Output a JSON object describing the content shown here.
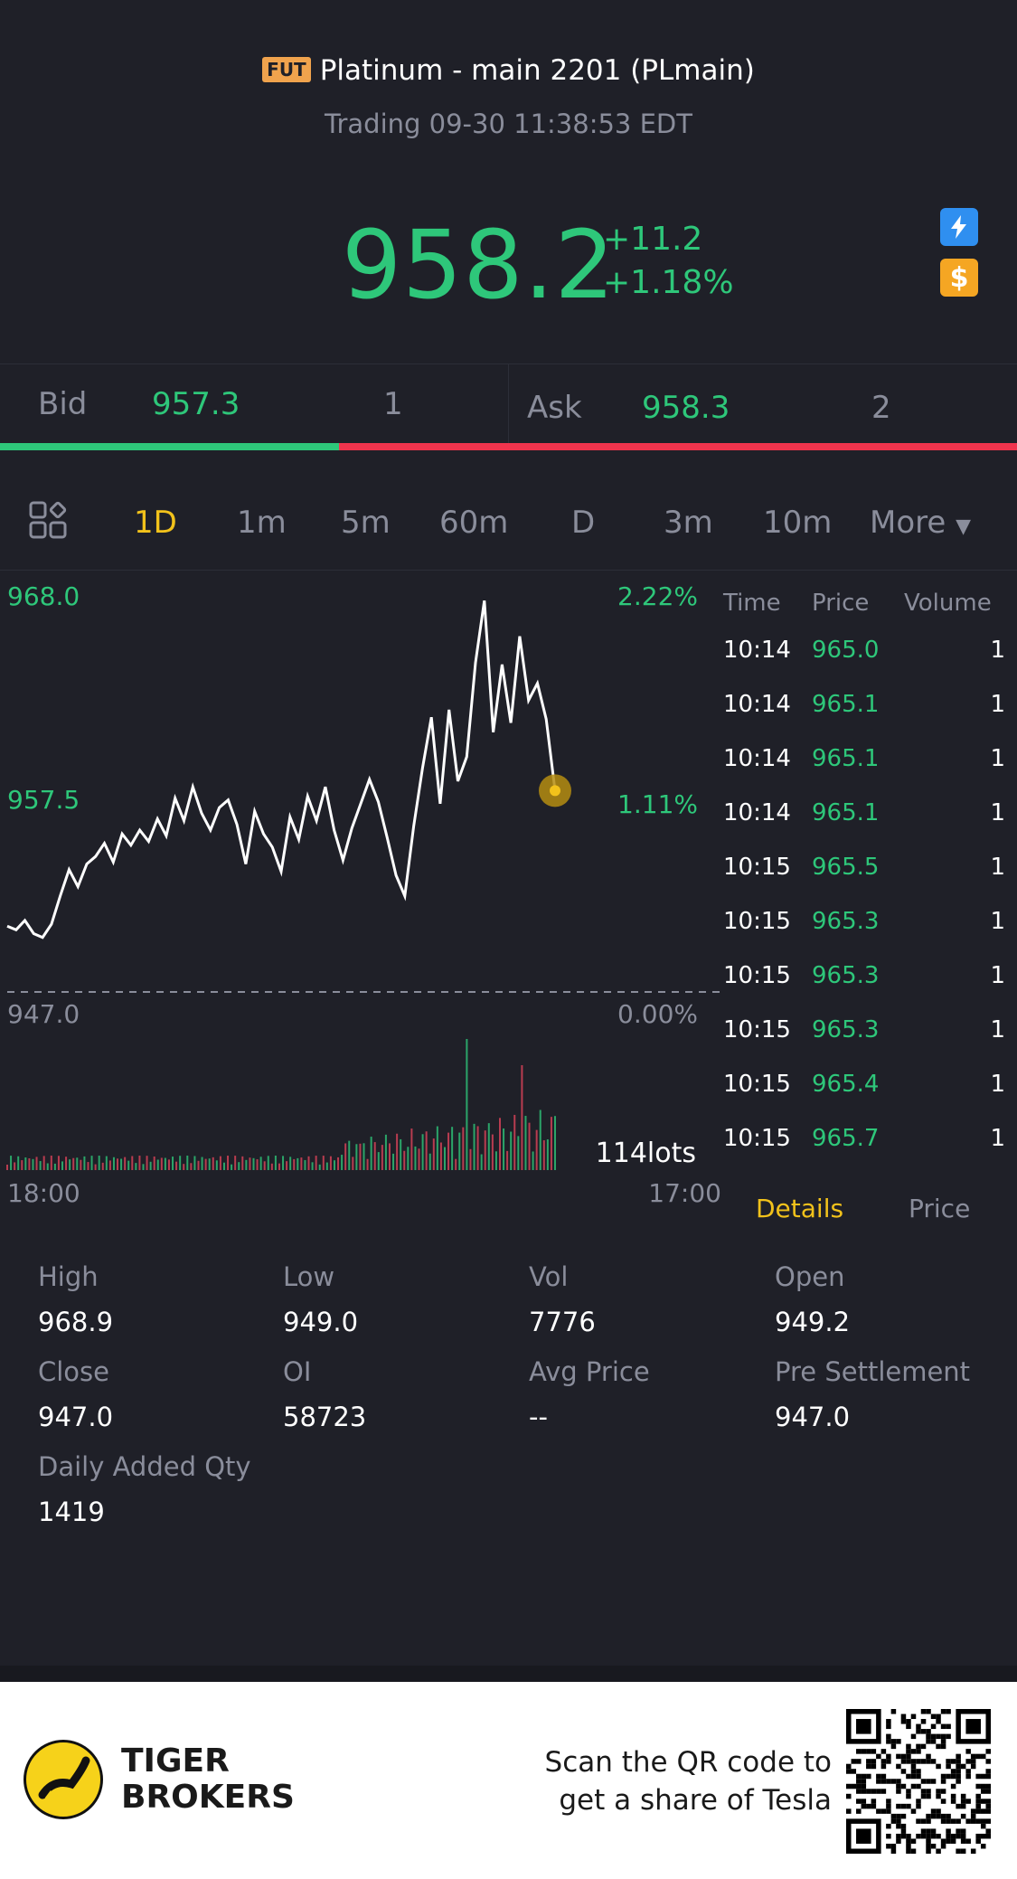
{
  "header": {
    "badge": "FUT",
    "title": "Platinum - main 2201 (PLmain)",
    "status": "Trading 09-30 11:38:53 EDT"
  },
  "quote": {
    "last": "958.2",
    "change": "+11.2",
    "change_pct": "+1.18%",
    "accent_color": "#2ec77a"
  },
  "side_icons": [
    "lightning-icon",
    "dollar-icon"
  ],
  "bid": {
    "label": "Bid",
    "price": "957.3",
    "qty": "1",
    "ratio": 0.333
  },
  "ask": {
    "label": "Ask",
    "price": "958.3",
    "qty": "2"
  },
  "tabs": [
    "1D",
    "1m",
    "5m",
    "60m",
    "D",
    "3m",
    "10m",
    "More"
  ],
  "active_tab": "1D",
  "chart": {
    "y_labels": [
      "968.0",
      "957.5",
      "947.0"
    ],
    "pct_labels": [
      "2.22%",
      "1.11%",
      "0.00%"
    ],
    "volume_label": "114lots",
    "x_start": "18:00",
    "x_end": "17:00"
  },
  "chart_data": {
    "type": "line",
    "ylim": [
      947.0,
      968.0
    ],
    "x_labels": [
      "18:00",
      "17:00"
    ],
    "values": [
      950.5,
      950.3,
      950.8,
      950.1,
      949.9,
      950.6,
      952.1,
      953.5,
      952.6,
      953.8,
      954.2,
      954.9,
      953.9,
      955.4,
      954.8,
      955.6,
      955.0,
      956.2,
      955.3,
      957.3,
      956.1,
      957.9,
      956.5,
      955.6,
      956.8,
      957.2,
      955.9,
      953.8,
      956.6,
      955.4,
      954.7,
      953.4,
      956.3,
      955.1,
      957.4,
      956.1,
      957.9,
      955.6,
      954.0,
      955.7,
      957.0,
      958.3,
      957.1,
      955.2,
      953.2,
      952.1,
      955.8,
      958.9,
      961.6,
      957.0,
      962.0,
      958.2,
      959.5,
      964.5,
      967.8,
      960.8,
      964.4,
      961.3,
      965.9,
      962.5,
      963.4,
      961.5,
      957.7
    ],
    "volume_peak": 114
  },
  "trades": {
    "headers": [
      "Time",
      "Price",
      "Volume"
    ],
    "rows": [
      {
        "time": "10:14",
        "price": "965.0",
        "volume": "1"
      },
      {
        "time": "10:14",
        "price": "965.1",
        "volume": "1"
      },
      {
        "time": "10:14",
        "price": "965.1",
        "volume": "1"
      },
      {
        "time": "10:14",
        "price": "965.1",
        "volume": "1"
      },
      {
        "time": "10:15",
        "price": "965.5",
        "volume": "1"
      },
      {
        "time": "10:15",
        "price": "965.3",
        "volume": "1"
      },
      {
        "time": "10:15",
        "price": "965.3",
        "volume": "1"
      },
      {
        "time": "10:15",
        "price": "965.3",
        "volume": "1"
      },
      {
        "time": "10:15",
        "price": "965.4",
        "volume": "1"
      },
      {
        "time": "10:15",
        "price": "965.7",
        "volume": "1"
      }
    ],
    "tab_details": "Details",
    "tab_price": "Price"
  },
  "stats": {
    "high_label": "High",
    "high": "968.9",
    "low_label": "Low",
    "low": "949.0",
    "vol_label": "Vol",
    "vol": "7776",
    "open_label": "Open",
    "open": "949.2",
    "close_label": "Close",
    "close": "947.0",
    "oi_label": "OI",
    "oi": "58723",
    "avg_label": "Avg Price",
    "avg": "--",
    "pre_label": "Pre Settlement",
    "pre": "947.0",
    "daily_label": "Daily Added Qty",
    "daily": "1419"
  },
  "footer": {
    "brand_line1": "TIGER",
    "brand_line2": "BROKERS",
    "scan_line1": "Scan the QR code to",
    "scan_line2": "get a share of Tesla"
  }
}
